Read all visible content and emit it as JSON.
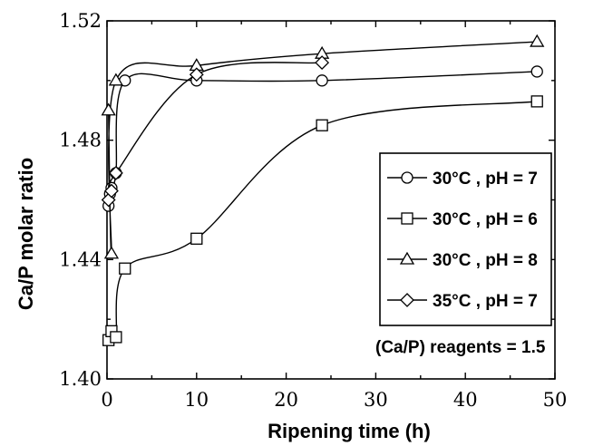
{
  "chart_data": {
    "type": "line",
    "title": "",
    "xlabel": "Ripening time (h)",
    "ylabel": "Ca/P molar ratio",
    "xlim": [
      0,
      50
    ],
    "ylim": [
      1.4,
      1.52
    ],
    "x_ticks": [
      0,
      10,
      20,
      30,
      40,
      50
    ],
    "x_tick_labels": [
      "0",
      "10",
      "20",
      "30",
      "40",
      "50"
    ],
    "y_ticks": [
      1.4,
      1.44,
      1.48,
      1.52
    ],
    "y_tick_labels": [
      "1.40",
      "1.44",
      "1.48",
      "1.52"
    ],
    "grid": false,
    "legend_position": "right",
    "series": [
      {
        "name": "30°C , pH = 7",
        "marker": "circle",
        "x": [
          0.17,
          0.33,
          0.5,
          1,
          2,
          10,
          24,
          48
        ],
        "y": [
          1.458,
          1.462,
          1.464,
          1.469,
          1.5,
          1.5,
          1.5,
          1.503
        ]
      },
      {
        "name": "30°C , pH = 6",
        "marker": "square",
        "x": [
          0.17,
          0.5,
          1,
          2,
          10,
          24,
          48
        ],
        "y": [
          1.413,
          1.416,
          1.414,
          1.437,
          1.447,
          1.485,
          1.493
        ]
      },
      {
        "name": "30°C , pH = 8",
        "marker": "triangle",
        "x": [
          0.17,
          0.5,
          1,
          10,
          24,
          48
        ],
        "y": [
          1.49,
          1.442,
          1.5,
          1.505,
          1.509,
          1.513
        ]
      },
      {
        "name": "35°C , pH = 7",
        "marker": "diamond",
        "x": [
          0.17,
          0.5,
          1,
          10,
          24
        ],
        "y": [
          1.46,
          1.463,
          1.469,
          1.502,
          1.506
        ]
      }
    ],
    "annotations": [
      {
        "text": "(Ca/P) reagents = 1.5"
      }
    ]
  }
}
